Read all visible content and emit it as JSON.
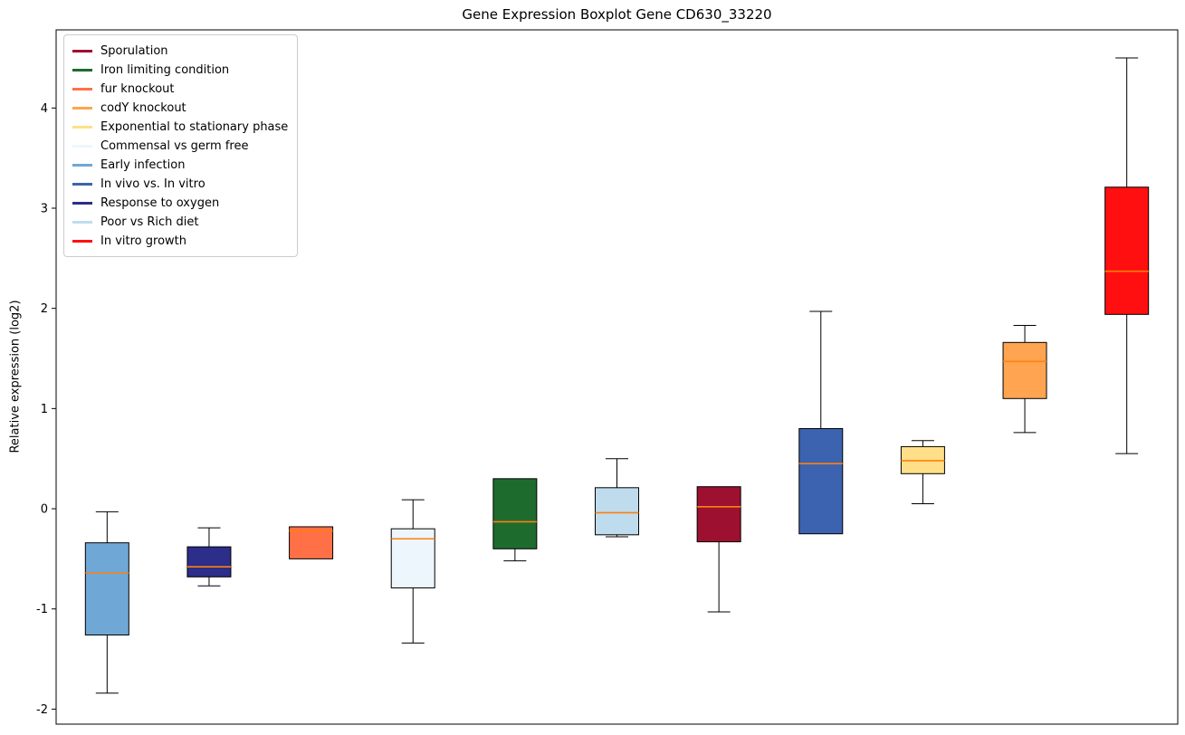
{
  "chart_data": {
    "type": "boxplot",
    "title": "Gene Expression Boxplot Gene CD630_33220",
    "xlabel": "",
    "ylabel": "Relative expression (log2)",
    "ylim": [
      -2.15,
      4.78
    ],
    "yticks": [
      -2,
      -1,
      0,
      1,
      2,
      3,
      4
    ],
    "grid": false,
    "legend_position": "upper left",
    "median_color": "#ff7f0e",
    "box_edge_color": "#000000",
    "legend": [
      {
        "label": "Sporulation",
        "color": "#9e1030"
      },
      {
        "label": "Iron limiting condition",
        "color": "#1e6b2e"
      },
      {
        "label": "fur knockout",
        "color": "#ff7047"
      },
      {
        "label": "codY knockout",
        "color": "#ffa450"
      },
      {
        "label": "Exponential to stationary phase",
        "color": "#ffdf87"
      },
      {
        "label": "Commensal vs germ free",
        "color": "#edf6fc"
      },
      {
        "label": "Early infection",
        "color": "#6fa8d6"
      },
      {
        "label": "In vivo vs. In vitro",
        "color": "#3b63b0"
      },
      {
        "label": "Response to oxygen",
        "color": "#2d2d8a"
      },
      {
        "label": "Poor vs Rich diet",
        "color": "#bedced"
      },
      {
        "label": "In vitro growth",
        "color": "#ff0f0f"
      }
    ],
    "boxes": [
      {
        "label": "Early infection",
        "color": "#6fa8d6",
        "whislo": -1.84,
        "q1": -1.26,
        "med": -0.64,
        "q3": -0.34,
        "whishi": -0.03
      },
      {
        "label": "Response to oxygen",
        "color": "#2d2d8a",
        "whislo": -0.77,
        "q1": -0.68,
        "med": -0.58,
        "q3": -0.38,
        "whishi": -0.19
      },
      {
        "label": "fur knockout",
        "color": "#ff7047",
        "whislo": -0.5,
        "q1": -0.5,
        "med": -0.22,
        "q3": -0.18,
        "whishi": -0.18
      },
      {
        "label": "Commensal vs germ free",
        "color": "#edf6fc",
        "whislo": -1.34,
        "q1": -0.79,
        "med": -0.3,
        "q3": -0.2,
        "whishi": 0.09
      },
      {
        "label": "Iron limiting condition",
        "color": "#1e6b2e",
        "whislo": -0.52,
        "q1": -0.4,
        "med": -0.13,
        "q3": 0.3,
        "whishi": 0.3
      },
      {
        "label": "Poor vs Rich diet",
        "color": "#bedced",
        "whislo": -0.28,
        "q1": -0.26,
        "med": -0.04,
        "q3": 0.21,
        "whishi": 0.5
      },
      {
        "label": "Sporulation",
        "color": "#9e1030",
        "whislo": -1.03,
        "q1": -0.33,
        "med": 0.02,
        "q3": 0.22,
        "whishi": 0.22
      },
      {
        "label": "In vivo vs. In vitro",
        "color": "#3b63b0",
        "whislo": -0.25,
        "q1": -0.25,
        "med": 0.45,
        "q3": 0.8,
        "whishi": 1.97
      },
      {
        "label": "Exponential to stationary phase",
        "color": "#ffdf87",
        "whislo": 0.05,
        "q1": 0.35,
        "med": 0.48,
        "q3": 0.62,
        "whishi": 0.68
      },
      {
        "label": "codY knockout",
        "color": "#ffa450",
        "whislo": 0.76,
        "q1": 1.1,
        "med": 1.47,
        "q3": 1.66,
        "whishi": 1.83
      },
      {
        "label": "In vitro growth",
        "color": "#ff0f0f",
        "whislo": 0.55,
        "q1": 1.94,
        "med": 2.37,
        "q3": 3.21,
        "whishi": 4.5
      }
    ]
  }
}
